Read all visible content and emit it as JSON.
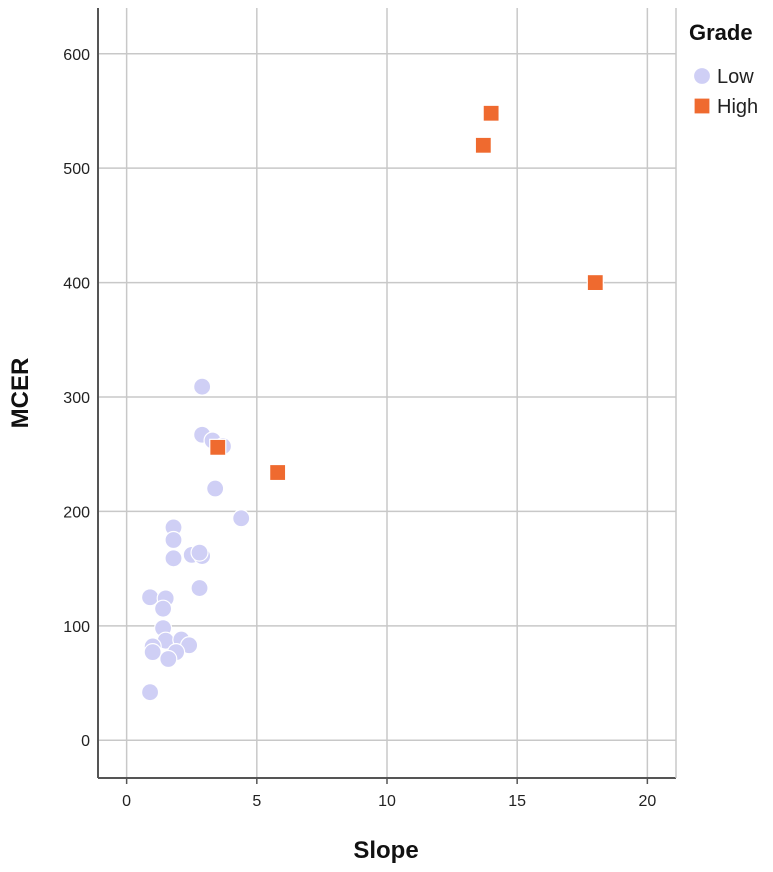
{
  "chart_data": {
    "type": "scatter",
    "title": "",
    "xlabel": "Slope",
    "ylabel": "MCER",
    "xlim": [
      -1.1,
      21.1
    ],
    "ylim": [
      -33,
      640
    ],
    "xticks": [
      "0",
      "5",
      "10",
      "15",
      "20"
    ],
    "yticks": [
      "0",
      "100",
      "200",
      "300",
      "400",
      "500",
      "600"
    ],
    "grid": true,
    "legend": {
      "title": "Grade",
      "placement": "right"
    },
    "colors": {
      "low": "#cfcff5",
      "high": "#ef6a2f",
      "grid": "#c8c8c8",
      "axis": "#555555"
    },
    "series": [
      {
        "name": "Low",
        "marker": "circle",
        "points": [
          [
            2.9,
            309
          ],
          [
            2.9,
            267
          ],
          [
            3.3,
            262
          ],
          [
            3.7,
            257
          ],
          [
            3.4,
            220
          ],
          [
            4.4,
            194
          ],
          [
            1.8,
            186
          ],
          [
            1.8,
            175
          ],
          [
            1.8,
            159
          ],
          [
            2.5,
            162
          ],
          [
            2.9,
            161
          ],
          [
            2.8,
            164
          ],
          [
            2.8,
            133
          ],
          [
            0.9,
            125
          ],
          [
            1.5,
            124
          ],
          [
            1.4,
            115
          ],
          [
            1.4,
            98
          ],
          [
            1.5,
            87
          ],
          [
            2.1,
            88
          ],
          [
            2.4,
            83
          ],
          [
            1.0,
            82
          ],
          [
            1.0,
            77
          ],
          [
            1.9,
            77
          ],
          [
            1.6,
            71
          ],
          [
            0.9,
            42
          ]
        ]
      },
      {
        "name": "High",
        "marker": "square",
        "points": [
          [
            14.0,
            548
          ],
          [
            13.7,
            520
          ],
          [
            18.0,
            400
          ],
          [
            3.5,
            256
          ],
          [
            5.8,
            234
          ]
        ]
      }
    ]
  }
}
